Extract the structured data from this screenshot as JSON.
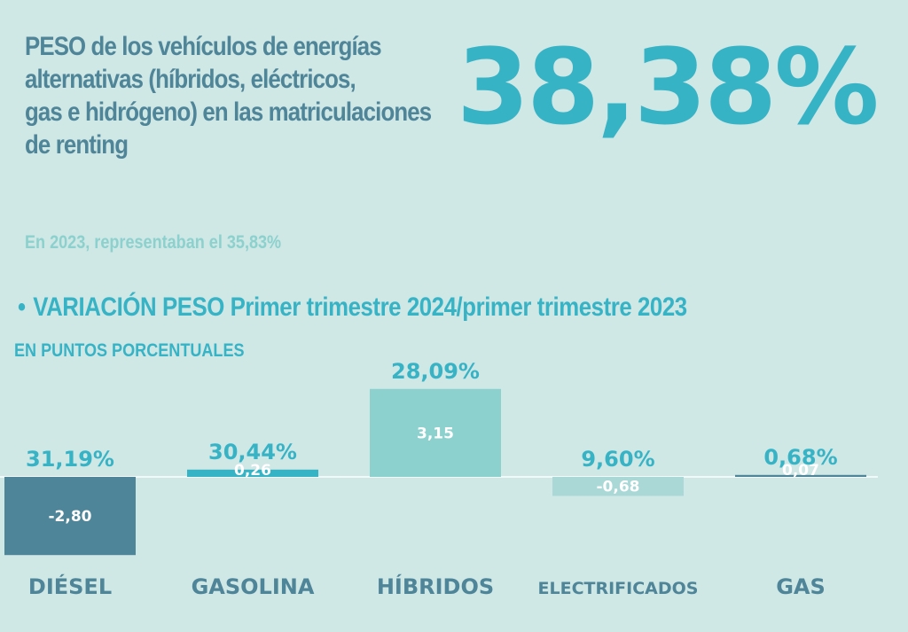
{
  "headline": {
    "line1": "PESO de los vehículos de energías",
    "line2": "alternativas  (híbridos, eléctricos,",
    "line3": " gas e hidrógeno) en las matriculaciones",
    "line4": "de renting"
  },
  "big_value": "38,38%",
  "subnote": "En 2023, representaban el 35,83%",
  "section": {
    "bullet": "•",
    "title": "VARIACIÓN PESO Primer trimestre 2024/primer trimestre 2023",
    "subtitle": "EN PUNTOS PORCENTUALES"
  },
  "colors": {
    "background": "#cfe7e5",
    "dark_bar": "#4f8598",
    "cyan_bar": "#37b3c6",
    "mint_bar": "#8cd1cd",
    "light_bar": "#a9d8d6",
    "headline_text": "#4f8598",
    "accent_text": "#37b3c6"
  },
  "chart_data": {
    "type": "bar",
    "categories": [
      "DIÉSEL",
      "GASOLINA",
      "HÍBRIDOS",
      "ELECTRIFICADOS",
      "GAS"
    ],
    "values": [
      -2.8,
      0.26,
      3.15,
      -0.68,
      0.07
    ],
    "value_labels": [
      "-2,80",
      "0,26",
      "3,15",
      "-0,68",
      "0,07"
    ],
    "share_labels": [
      "31,19%",
      "30,44%",
      "28,09%",
      "9,60%",
      "0,68%"
    ],
    "bar_colors": [
      "#4f8598",
      "#37b3c6",
      "#8cd1cd",
      "#a9d8d6",
      "#4f8598"
    ],
    "title": "",
    "xlabel": "",
    "ylabel": "",
    "ylim": [
      -3,
      3.5
    ],
    "grid": false,
    "legend": "none"
  }
}
